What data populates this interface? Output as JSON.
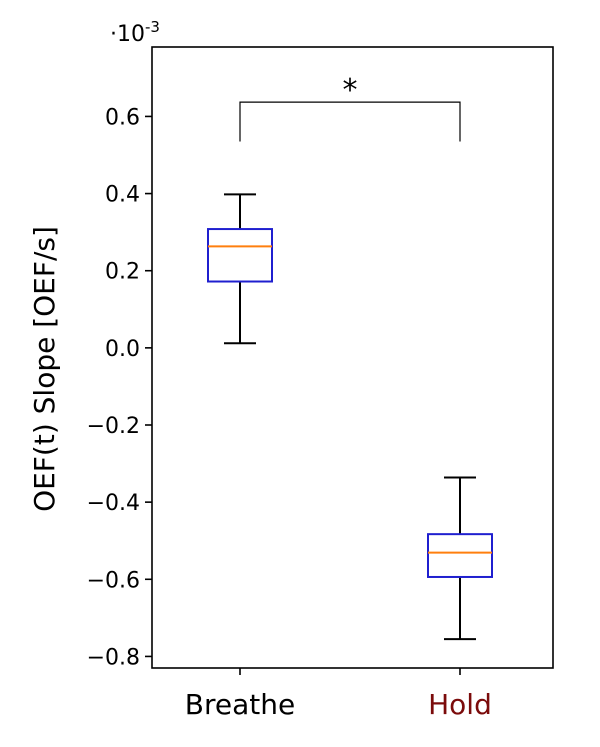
{
  "chart_data": {
    "type": "box",
    "title": "",
    "xlabel": "",
    "ylabel": "OEF(t) Slope [OEF/s]",
    "scale_label": {
      "base": "·10",
      "exp": "-3"
    },
    "ylim": [
      -0.83,
      0.78
    ],
    "yticks": [
      0.6,
      0.4,
      0.2,
      0.0,
      -0.2,
      -0.4,
      -0.6,
      -0.8
    ],
    "ytick_labels": [
      "0.6",
      "0.4",
      "0.2",
      "0.0",
      "−0.2",
      "−0.4",
      "−0.6",
      "−0.8"
    ],
    "categories": [
      "Breathe",
      "Hold"
    ],
    "category_colors": [
      "#000000",
      "#7b0b0b"
    ],
    "box_color": "#1f1fcf",
    "median_color": "#ff7f0e",
    "whisker_color": "#000000",
    "boxes": [
      {
        "whislo": 0.012,
        "q1": 0.172,
        "med": 0.263,
        "q3": 0.308,
        "whishi": 0.398
      },
      {
        "whislo": -0.755,
        "q1": -0.594,
        "med": -0.531,
        "q3": -0.483,
        "whishi": -0.336
      }
    ],
    "significance": {
      "label": "*",
      "from": 0,
      "to": 1,
      "top": 0.637,
      "leg_bottom": 0.535
    }
  }
}
